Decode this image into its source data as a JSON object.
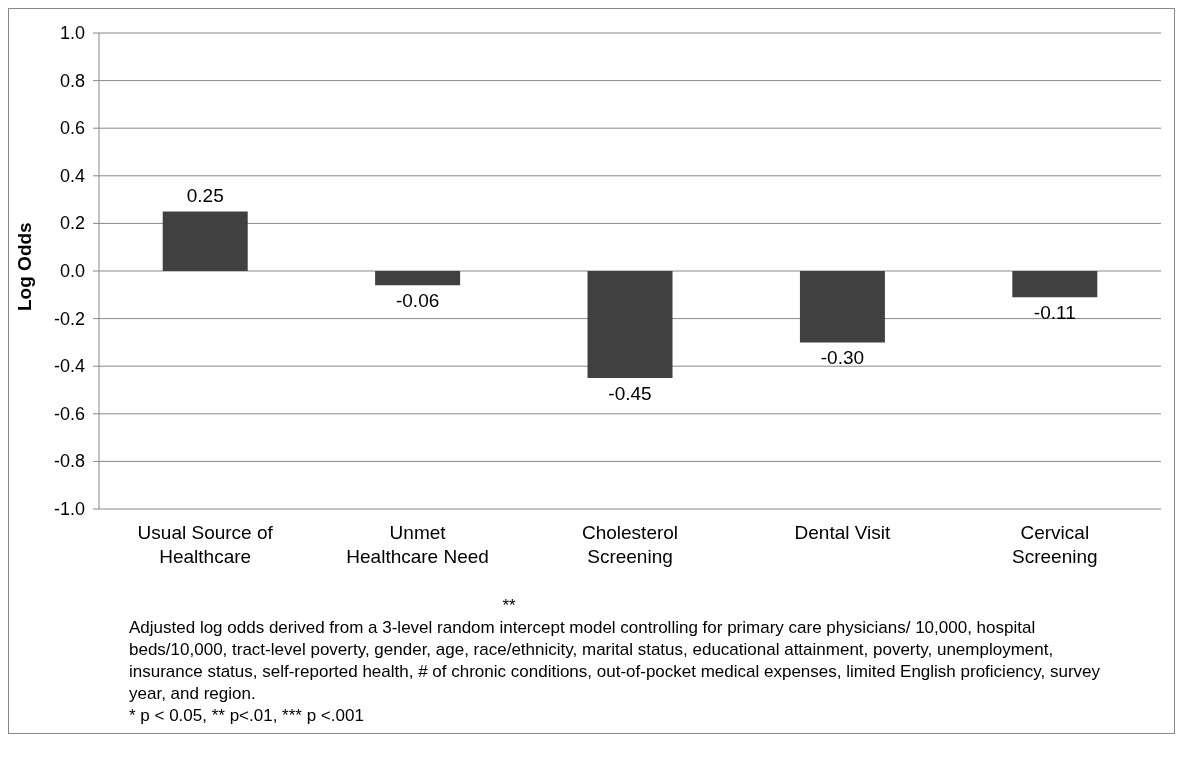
{
  "chart_data": {
    "type": "bar",
    "ylabel": "Log Odds",
    "categories": [
      "Usual Source of Healthcare",
      "Unmet Healthcare Need",
      "Cholesterol Screening",
      "Dental Visit",
      "Cervical Screening"
    ],
    "series": [
      {
        "color": "#404040",
        "values": [
          0.25,
          -0.06,
          -0.45,
          -0.3,
          -0.11
        ],
        "value_labels": [
          "0.25",
          "-0.06",
          "-0.45",
          "-0.30",
          "-0.11"
        ]
      }
    ],
    "ylim": [
      -1,
      1
    ],
    "yticks": [
      {
        "value": -1,
        "label": "-1.0"
      },
      {
        "value": -0.8,
        "label": "-0.8"
      },
      {
        "value": -0.6,
        "label": "-0.6"
      },
      {
        "value": -0.4,
        "label": "-0.4"
      },
      {
        "value": -0.2,
        "label": "-0.2"
      },
      {
        "value": 0,
        "label": "0.0"
      },
      {
        "value": 0.2,
        "label": "0.2"
      },
      {
        "value": 0.4,
        "label": "0.4"
      },
      {
        "value": 0.6,
        "label": "0.6"
      },
      {
        "value": 0.8,
        "label": "0.8"
      },
      {
        "value": 1,
        "label": "1.0"
      }
    ],
    "grid": "y",
    "legend": false,
    "annotations": [
      "**",
      "Adjusted log odds derived from a 3-level random intercept model controlling for primary care physicians/ 10,000, hospital beds/10,000, tract-level poverty, gender, age, race/ethnicity, marital status, educational attainment, poverty, unemployment, insurance status, self-reported health, # of chronic conditions, out-of-pocket medical expenses, limited English proficiency, survey year, and region.",
      "* p < 0.05, ** p<.01, *** p <.001"
    ]
  }
}
